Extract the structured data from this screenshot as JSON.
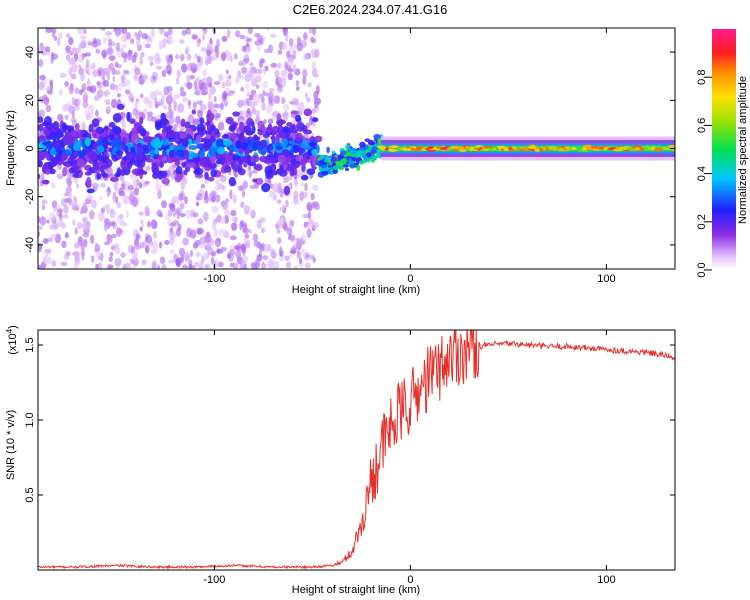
{
  "title": "C2E6.2024.234.07.41.G16",
  "chart_data": [
    {
      "type": "heatmap",
      "xlabel": "Height of straight line (km)",
      "ylabel": "Frequency (Hz)",
      "xlim": [
        -190,
        135
      ],
      "ylim": [
        -50,
        50
      ],
      "xticks": [
        -100,
        0,
        100
      ],
      "xtick_labels": [
        "-100",
        "0",
        "100"
      ],
      "yticks": [
        -40,
        -20,
        0,
        20,
        40
      ],
      "ytick_labels": [
        "-40",
        "-20",
        "0",
        "20",
        "40"
      ],
      "colorbar": {
        "label": "Normalized spectral amplitude",
        "range": [
          0,
          1
        ],
        "ticks": [
          0,
          0.2,
          0.4,
          0.6,
          0.8
        ],
        "tick_labels": [
          "0.0",
          "0.2",
          "0.4",
          "0.6",
          "0.8"
        ],
        "colormap": "rainbow (white-violet-blue-cyan-green-yellow-orange-red-magenta)"
      },
      "regions": [
        {
          "x_range": [
            -190,
            -47
          ],
          "center_freq_hz": 0,
          "core_halfwidth_hz": 12,
          "scatter_halfwidth_hz": 50,
          "peak_amplitude": 0.4
        },
        {
          "x_range": [
            -47,
            -15
          ],
          "center_freq_hz_start": -8,
          "center_freq_hz_end": 1,
          "peak_amplitude": 0.6
        },
        {
          "x_range": [
            -15,
            135
          ],
          "center_freq_hz": 0,
          "core_halfwidth_hz": 2,
          "peak_amplitude": 0.9
        }
      ],
      "grid": false
    },
    {
      "type": "line",
      "xlabel": "Height of straight line (km)",
      "ylabel": "SNR (10 * v/v)",
      "y_multiplier_label": "(x10",
      "y_multiplier_exponent": "4",
      "xlim": [
        -190,
        135
      ],
      "ylim": [
        0,
        1.6
      ],
      "xticks": [
        -100,
        0,
        100
      ],
      "xtick_labels": [
        "-100",
        "0",
        "100"
      ],
      "yticks": [
        0.5,
        1.0,
        1.5
      ],
      "ytick_labels": [
        "0.5",
        "1.0",
        "1.5"
      ],
      "color": "#e8302a",
      "series": [
        {
          "x": [
            -190,
            -170,
            -150,
            -130,
            -110,
            -90,
            -70,
            -50,
            -40,
            -35,
            -30,
            -25,
            -20,
            -15,
            -10,
            -5,
            0,
            5,
            10,
            15,
            20,
            30,
            40,
            50,
            60,
            70,
            80,
            90,
            100,
            110,
            120,
            135
          ],
          "values": [
            0.02,
            0.02,
            0.03,
            0.02,
            0.02,
            0.03,
            0.02,
            0.02,
            0.03,
            0.05,
            0.12,
            0.3,
            0.6,
            0.8,
            0.95,
            1.05,
            1.12,
            1.2,
            1.3,
            1.35,
            1.42,
            1.48,
            1.5,
            1.51,
            1.5,
            1.49,
            1.49,
            1.48,
            1.47,
            1.46,
            1.45,
            1.42
          ]
        }
      ],
      "grid": false
    }
  ]
}
